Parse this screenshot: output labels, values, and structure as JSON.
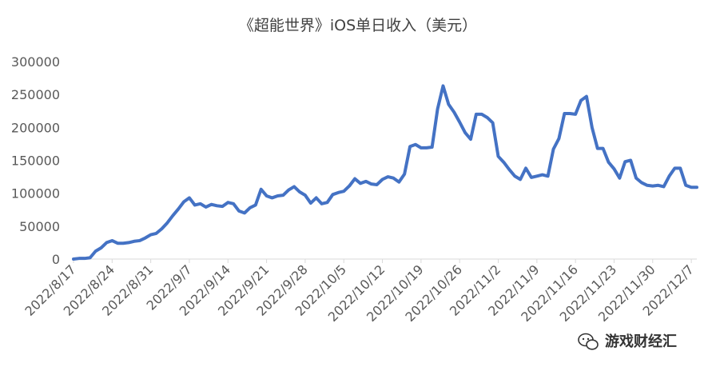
{
  "chart_data": {
    "type": "line",
    "title": "《超能世界》iOS单日收入（美元）",
    "xlabel": "",
    "ylabel": "",
    "ylim": [
      0,
      300000
    ],
    "yticks": [
      0,
      50000,
      100000,
      150000,
      200000,
      250000,
      300000
    ],
    "ytick_labels": [
      "0",
      "50000",
      "100000",
      "150000",
      "200000",
      "250000",
      "300000"
    ],
    "xtick_labels": [
      "2022/8/17",
      "2022/8/24",
      "2022/8/31",
      "2022/9/7",
      "2022/9/14",
      "2022/9/21",
      "2022/9/28",
      "2022/10/5",
      "2022/10/12",
      "2022/10/19",
      "2022/10/26",
      "2022/11/2",
      "2022/11/9",
      "2022/11/16",
      "2022/11/23",
      "2022/11/30",
      "2022/12/7"
    ],
    "grid": false,
    "line_color": "#4472C4",
    "x_start": "2022/8/17",
    "x_end": "2022/12/8",
    "series": [
      {
        "values": [
          0,
          1000,
          1000,
          2000,
          12000,
          17000,
          25000,
          28000,
          24000,
          24000,
          25000,
          27000,
          28000,
          32000,
          37000,
          39000,
          46000,
          55000,
          66000,
          76000,
          87000,
          93000,
          82000,
          84000,
          79000,
          83000,
          81000,
          80000,
          86000,
          84000,
          73000,
          70000,
          78000,
          82000,
          106000,
          96000,
          93000,
          96000,
          97000,
          105000,
          110000,
          102000,
          97000,
          85000,
          93000,
          84000,
          86000,
          98000,
          101000,
          103000,
          111000,
          122000,
          115000,
          118000,
          114000,
          113000,
          121000,
          125000,
          123000,
          117000,
          129000,
          171000,
          174000,
          169000,
          169000,
          170000,
          228000,
          263000,
          235000,
          223000,
          208000,
          192000,
          182000,
          220000,
          220000,
          215000,
          207000,
          156000,
          147000,
          136000,
          126000,
          121000,
          138000,
          124000,
          126000,
          128000,
          126000,
          167000,
          183000,
          221000,
          221000,
          220000,
          241000,
          247000,
          200000,
          168000,
          168000,
          147000,
          137000,
          123000,
          148000,
          150000,
          123000,
          116000,
          112000,
          111000,
          112000,
          110000,
          126000,
          138000,
          138000,
          112000,
          109000,
          109000
        ]
      }
    ]
  },
  "watermark": {
    "text": "游戏财经汇",
    "icon": "wechat-icon"
  }
}
